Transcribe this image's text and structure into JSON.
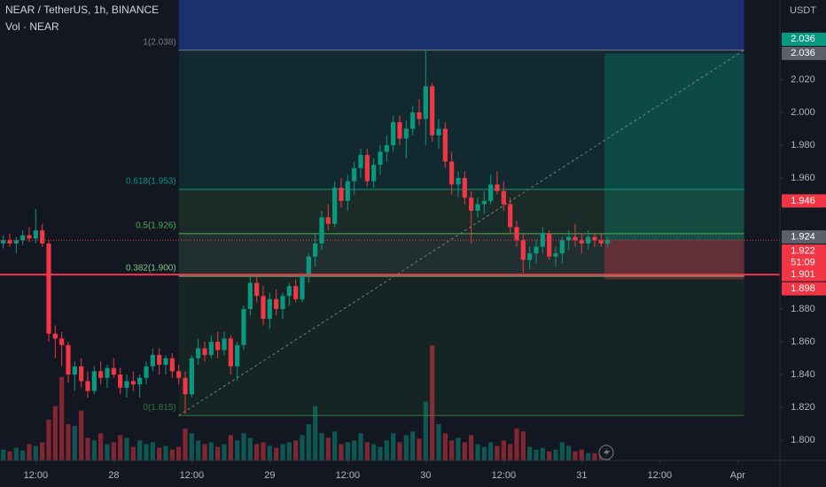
{
  "chart_data": {
    "type": "candlestick",
    "title": "NEAR / TetherUS, 1h, BINANCE",
    "volume_label": "Vol · NEAR",
    "y_unit": "USDT",
    "up_color": "#089981",
    "down_color": "#f23645",
    "x": [
      7,
      8,
      9,
      10,
      11,
      12,
      13,
      14,
      15,
      16,
      17,
      18,
      19,
      20,
      21,
      22,
      23,
      24,
      25,
      26,
      27,
      28,
      29,
      30,
      31,
      32,
      33,
      34,
      35,
      36,
      37,
      38,
      39,
      40,
      41,
      42,
      43,
      44,
      45,
      46,
      47,
      48,
      49,
      50,
      51,
      52,
      53,
      54,
      55,
      56,
      57,
      58,
      59,
      60,
      61,
      62,
      63,
      64,
      65,
      66,
      67,
      68,
      69,
      70,
      71,
      72,
      73,
      74,
      75,
      76,
      77,
      78,
      79,
      80,
      81,
      82,
      83,
      84,
      85,
      86,
      87,
      88,
      89,
      90,
      91,
      92,
      93,
      94,
      95,
      96,
      97,
      98,
      99,
      100
    ],
    "open": [
      1.92,
      1.922,
      1.92,
      1.922,
      1.925,
      1.923,
      1.928,
      1.92,
      1.865,
      1.862,
      1.858,
      1.84,
      1.845,
      1.836,
      1.83,
      1.842,
      1.838,
      1.844,
      1.84,
      1.832,
      1.836,
      1.834,
      1.838,
      1.845,
      1.852,
      1.846,
      1.85,
      1.842,
      1.838,
      1.828,
      1.85,
      1.856,
      1.852,
      1.86,
      1.855,
      1.862,
      1.845,
      1.858,
      1.88,
      1.896,
      1.888,
      1.874,
      1.886,
      1.88,
      1.888,
      1.894,
      1.886,
      1.9,
      1.912,
      1.92,
      1.936,
      1.932,
      1.954,
      1.946,
      1.958,
      1.966,
      1.974,
      1.958,
      1.968,
      1.976,
      1.98,
      1.994,
      1.984,
      1.99,
      2.0,
      1.996,
      2.016,
      1.986,
      1.99,
      1.97,
      1.956,
      1.96,
      1.948,
      1.94,
      1.944,
      1.946,
      1.956,
      1.952,
      1.944,
      1.93,
      1.922,
      1.91,
      1.914,
      1.918,
      1.926,
      1.912,
      1.914,
      1.922,
      1.924,
      1.922,
      1.92,
      1.924,
      1.922,
      1.92
    ],
    "high": [
      1.925,
      1.926,
      1.924,
      1.928,
      1.93,
      1.941,
      1.932,
      1.922,
      1.87,
      1.866,
      1.86,
      1.848,
      1.85,
      1.842,
      1.845,
      1.848,
      1.846,
      1.85,
      1.844,
      1.84,
      1.842,
      1.84,
      1.848,
      1.856,
      1.856,
      1.852,
      1.853,
      1.846,
      1.842,
      1.852,
      1.862,
      1.86,
      1.864,
      1.866,
      1.866,
      1.864,
      1.86,
      1.882,
      1.9,
      1.9,
      1.894,
      1.89,
      1.892,
      1.89,
      1.896,
      1.898,
      1.902,
      1.914,
      1.926,
      1.94,
      1.944,
      1.958,
      1.96,
      1.962,
      1.97,
      1.978,
      1.978,
      1.972,
      1.98,
      1.986,
      1.998,
      1.998,
      1.995,
      2.004,
      2.008,
      2.038,
      2.018,
      1.996,
      1.994,
      1.976,
      1.964,
      1.964,
      1.952,
      1.948,
      1.952,
      1.962,
      1.964,
      1.958,
      1.948,
      1.934,
      1.926,
      1.918,
      1.922,
      1.93,
      1.928,
      1.918,
      1.924,
      1.928,
      1.932,
      1.926,
      1.928,
      1.926,
      1.926,
      1.924
    ],
    "low": [
      1.917,
      1.918,
      1.914,
      1.919,
      1.921,
      1.92,
      1.918,
      1.86,
      1.85,
      1.845,
      1.835,
      1.83,
      1.832,
      1.826,
      1.828,
      1.834,
      1.832,
      1.838,
      1.828,
      1.826,
      1.83,
      1.826,
      1.834,
      1.842,
      1.84,
      1.84,
      1.838,
      1.834,
      1.816,
      1.826,
      1.846,
      1.848,
      1.85,
      1.85,
      1.852,
      1.84,
      1.836,
      1.855,
      1.876,
      1.884,
      1.87,
      1.868,
      1.876,
      1.874,
      1.882,
      1.884,
      1.884,
      1.896,
      1.906,
      1.916,
      1.928,
      1.93,
      1.942,
      1.94,
      1.95,
      1.96,
      1.955,
      1.954,
      1.962,
      1.97,
      1.976,
      1.98,
      1.972,
      1.986,
      1.992,
      1.98,
      1.982,
      1.978,
      1.966,
      1.95,
      1.948,
      1.944,
      1.92,
      1.936,
      1.938,
      1.944,
      1.95,
      1.94,
      1.926,
      1.918,
      1.902,
      1.904,
      1.908,
      1.914,
      1.91,
      1.906,
      1.908,
      1.916,
      1.918,
      1.914,
      1.916,
      1.918,
      1.918,
      1.918
    ],
    "close": [
      1.922,
      1.92,
      1.922,
      1.925,
      1.923,
      1.928,
      1.92,
      1.865,
      1.862,
      1.858,
      1.84,
      1.845,
      1.836,
      1.83,
      1.842,
      1.838,
      1.844,
      1.84,
      1.832,
      1.836,
      1.834,
      1.838,
      1.845,
      1.852,
      1.846,
      1.85,
      1.842,
      1.838,
      1.828,
      1.85,
      1.856,
      1.852,
      1.86,
      1.855,
      1.862,
      1.845,
      1.858,
      1.88,
      1.896,
      1.888,
      1.874,
      1.886,
      1.88,
      1.888,
      1.894,
      1.886,
      1.9,
      1.912,
      1.92,
      1.936,
      1.932,
      1.954,
      1.946,
      1.958,
      1.966,
      1.974,
      1.958,
      1.968,
      1.976,
      1.98,
      1.994,
      1.984,
      1.99,
      2.0,
      1.996,
      2.016,
      1.986,
      1.99,
      1.97,
      1.956,
      1.96,
      1.948,
      1.94,
      1.944,
      1.946,
      1.956,
      1.952,
      1.944,
      1.93,
      1.922,
      1.91,
      1.914,
      1.918,
      1.926,
      1.912,
      1.914,
      1.922,
      1.924,
      1.922,
      1.92,
      1.924,
      1.922,
      1.92,
      1.922
    ],
    "volume": [
      12,
      10,
      14,
      11,
      18,
      16,
      20,
      45,
      60,
      92,
      40,
      38,
      55,
      25,
      22,
      30,
      18,
      20,
      28,
      25,
      15,
      22,
      18,
      20,
      14,
      16,
      12,
      15,
      35,
      30,
      22,
      18,
      20,
      15,
      18,
      28,
      22,
      30,
      25,
      18,
      20,
      16,
      14,
      18,
      20,
      22,
      28,
      40,
      60,
      30,
      25,
      32,
      18,
      20,
      22,
      30,
      20,
      18,
      15,
      22,
      30,
      20,
      28,
      32,
      24,
      65,
      127,
      40,
      30,
      22,
      25,
      20,
      28,
      18,
      15,
      20,
      16,
      22,
      18,
      35,
      32,
      15,
      12,
      14,
      10,
      12,
      20,
      16,
      10,
      12,
      8,
      8,
      10,
      6
    ],
    "xlim": [
      6.5,
      126.5
    ],
    "xticks": [
      {
        "value": 12,
        "label": "12:00"
      },
      {
        "value": 24,
        "label": "28"
      },
      {
        "value": 36,
        "label": "12:00"
      },
      {
        "value": 48,
        "label": "29"
      },
      {
        "value": 60,
        "label": "12:00"
      },
      {
        "value": 72,
        "label": "30"
      },
      {
        "value": 84,
        "label": "12:00"
      },
      {
        "value": 96,
        "label": "31"
      },
      {
        "value": 108,
        "label": "12:00"
      },
      {
        "value": 120,
        "label": "Apr"
      }
    ],
    "ylim": [
      1.7876,
      2.0686
    ],
    "yticks": [
      {
        "value": 1.8,
        "label": "1.800"
      },
      {
        "value": 1.82,
        "label": "1.820"
      },
      {
        "value": 1.84,
        "label": "1.840"
      },
      {
        "value": 1.86,
        "label": "1.860"
      },
      {
        "value": 1.88,
        "label": "1.880"
      },
      {
        "value": 1.96,
        "label": "1.960"
      },
      {
        "value": 1.98,
        "label": "1.980"
      },
      {
        "value": 2.0,
        "label": "2.000"
      },
      {
        "value": 2.02,
        "label": "2.020"
      }
    ],
    "fib": {
      "x_range": [
        34,
        121
      ],
      "above_color": "#1e3a8a",
      "levels": [
        {
          "value": 2.038,
          "label": "1(2.038)",
          "color": "#787b86"
        },
        {
          "value": 1.953,
          "label": "0.618(1.953)",
          "color": "#089981"
        },
        {
          "value": 1.926,
          "label": "0.5(1.926)",
          "color": "#4caf50"
        },
        {
          "value": 1.9,
          "label": "0.382(1.900)",
          "color": "#81c784"
        },
        {
          "value": 1.815,
          "label": "0(1.815)",
          "color": "#2e7d32"
        }
      ]
    },
    "position": {
      "x_range": [
        99.5,
        121
      ],
      "entry": 1.922,
      "target": 2.036,
      "stop": 1.898
    },
    "hline": {
      "value": 1.901,
      "color": "#f23645"
    },
    "price_tags": [
      {
        "value": 2.036,
        "label": "2.036",
        "color": "#5d606b"
      },
      {
        "value": 2.036,
        "label": "2.036",
        "color": "#089981"
      },
      {
        "value": 1.946,
        "label": "1.946",
        "color": "#f23645"
      },
      {
        "value": 1.924,
        "label": "1.924",
        "color": "#5d606b"
      },
      {
        "value": 1.922,
        "label": "1.922",
        "color": "#f23645",
        "countdown": "51:09"
      },
      {
        "value": 1.901,
        "label": "1.901",
        "color": "#f23645"
      },
      {
        "value": 1.898,
        "label": "1.898",
        "color": "#f23645"
      }
    ]
  }
}
